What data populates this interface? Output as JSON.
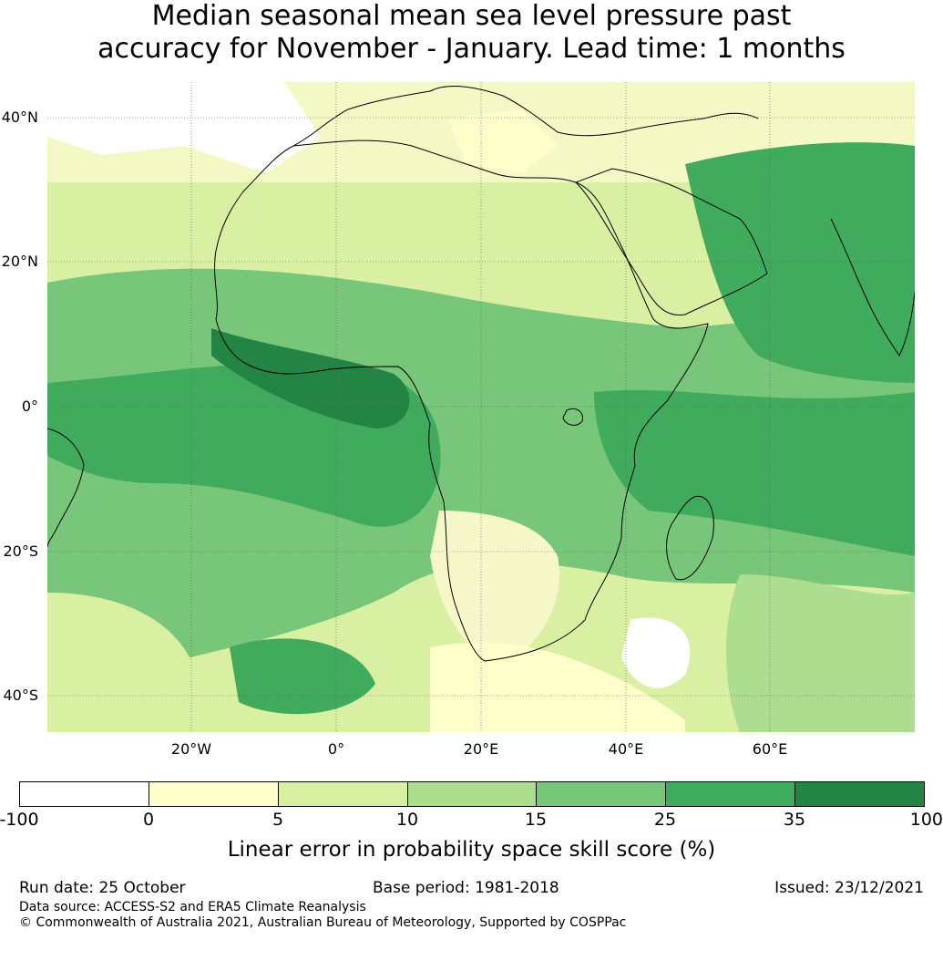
{
  "title": {
    "line1": "Median seasonal mean sea level pressure past",
    "line2": "accuracy for November - January. Lead time: 1 months"
  },
  "map": {
    "lat_labels": [
      "40°N",
      "20°N",
      "0°",
      "20°S",
      "40°S"
    ],
    "lon_labels": [
      "20°W",
      "0°",
      "20°E",
      "40°E",
      "60°E"
    ],
    "extent": {
      "lon": [
        -40,
        80
      ],
      "lat": [
        -45,
        45
      ]
    },
    "grid_lines": true,
    "ocean_base_color": "#f6f7c9",
    "coastline_color": "#000000"
  },
  "colorbar": {
    "ticks": [
      "-100",
      "0",
      "5",
      "10",
      "15",
      "25",
      "35",
      "100"
    ],
    "colors": [
      "#ffffff",
      "#ffffcc",
      "#d9f0a3",
      "#addd8e",
      "#78c679",
      "#41ab5d",
      "#238443"
    ],
    "label": "Linear error in probability space skill score (%)"
  },
  "footer": {
    "run_date": "Run date: 25 October",
    "base_period": "Base period: 1981-2018",
    "issued": "Issued: 23/12/2021",
    "data_source": "Data source: ACCESS-S2 and ERA5 Climate Reanalysis",
    "copyright": "© Commonwealth of Australia 2021, Australian Bureau of Meteorology, Supported by COSPPac"
  }
}
